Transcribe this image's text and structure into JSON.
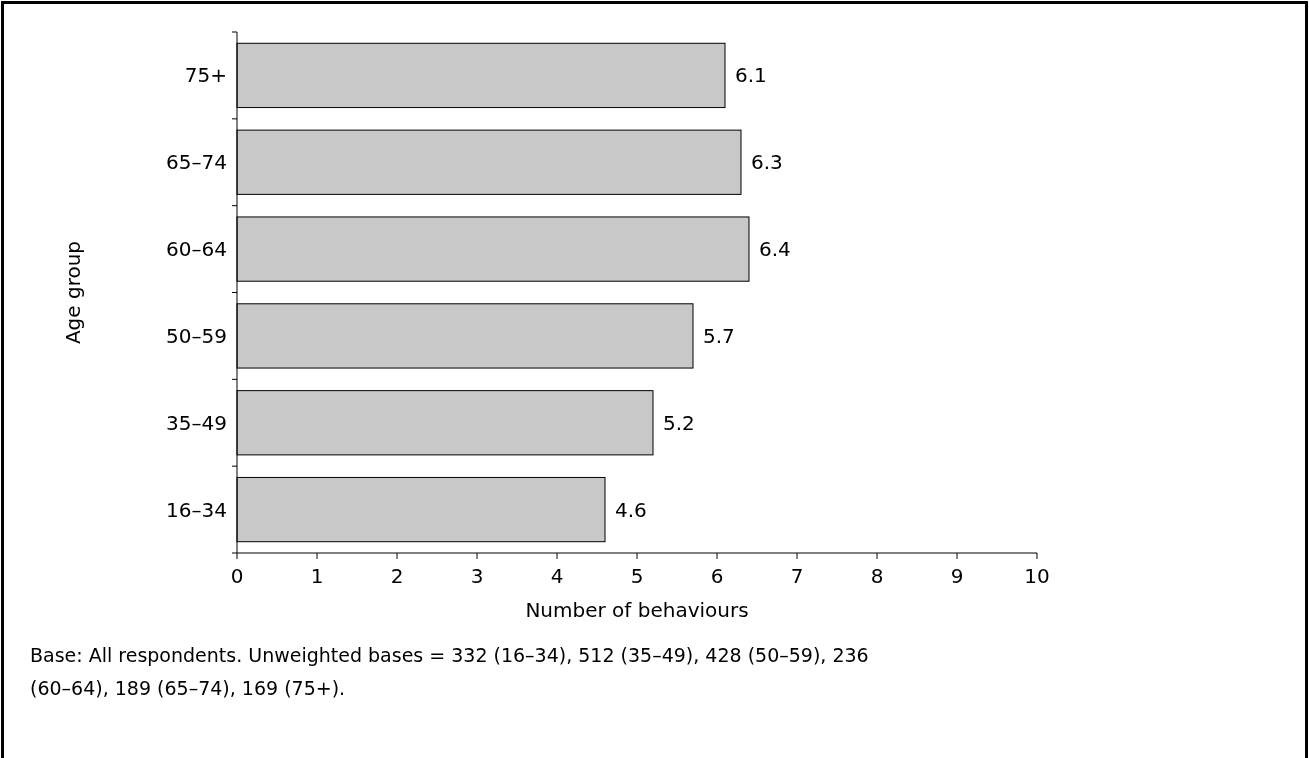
{
  "chart_data": {
    "type": "bar",
    "orientation": "horizontal",
    "categories": [
      "75+",
      "65–74",
      "60–64",
      "50–59",
      "35–49",
      "16–34"
    ],
    "values": [
      6.1,
      6.3,
      6.4,
      5.7,
      5.2,
      4.6
    ],
    "color": "#c8c8c8",
    "xlim": [
      0,
      10
    ],
    "xticks": [
      0,
      1,
      2,
      3,
      4,
      5,
      6,
      7,
      8,
      9,
      10
    ],
    "xlabel": "Number of behaviours",
    "ylabel": "Age group",
    "data_labels": true,
    "grid": false,
    "annotations": [
      "Base: All respondents. Unweighted bases = 332 (16–34), 512 (35–49), 428 (50–59), 236 (60–64), 189 (65–74), 169 (75+)."
    ]
  }
}
